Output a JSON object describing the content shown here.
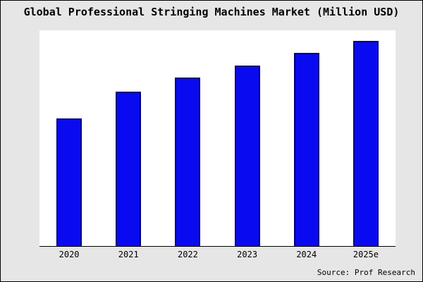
{
  "title": "Global Professional Stringing Machines Market (Million USD)",
  "source": "Source: Prof Research",
  "colors": {
    "bar_fill": "#0a0af0",
    "bar_border": "#000080",
    "background": "#e6e6e6",
    "plot_background": "#ffffff",
    "axis": "#000000"
  },
  "chart_data": {
    "type": "bar",
    "categories": [
      "2020",
      "2021",
      "2022",
      "2023",
      "2024",
      "2025e"
    ],
    "values": [
      62,
      75,
      82,
      88,
      94,
      100
    ],
    "title": "Global Professional Stringing Machines Market (Million USD)",
    "xlabel": "",
    "ylabel": "",
    "ylim": [
      0,
      105
    ],
    "grid": false,
    "legend": null,
    "bar_color": "#0a0af0",
    "bar_edge_color": "#000080",
    "annotation": "Source: Prof Research"
  }
}
